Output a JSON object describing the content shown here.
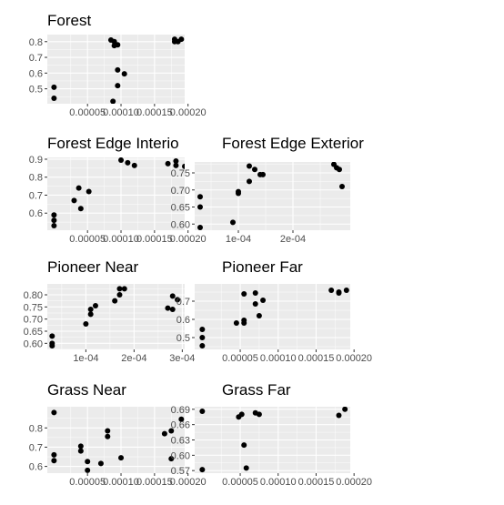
{
  "style": {
    "panel_bg": "#ebebeb",
    "grid_major": "#ffffff",
    "point_color": "#000000",
    "tick_text": "#4d4d4d"
  },
  "chart_data": [
    {
      "type": "scatter",
      "title": "Forest",
      "grid": true,
      "xlim": [
        -1e-05,
        0.000195
      ],
      "ylim": [
        0.405,
        0.845
      ],
      "x_ticks": [
        {
          "value": 5e-05,
          "label": "0.00005"
        },
        {
          "value": 0.0001,
          "label": "0.00010"
        },
        {
          "value": 0.00015,
          "label": "0.00015"
        },
        {
          "value": 0.0002,
          "label": "0.00020"
        }
      ],
      "y_ticks": [
        {
          "value": 0.5,
          "label": "0.5"
        },
        {
          "value": 0.6,
          "label": "0.6"
        },
        {
          "value": 0.7,
          "label": "0.7"
        },
        {
          "value": 0.8,
          "label": "0.8"
        }
      ],
      "points": [
        [
          0.0,
          0.51
        ],
        [
          0.0,
          0.44
        ],
        [
          8.5e-05,
          0.81
        ],
        [
          9e-05,
          0.8
        ],
        [
          9e-05,
          0.775
        ],
        [
          9.5e-05,
          0.78
        ],
        [
          9.5e-05,
          0.62
        ],
        [
          0.000105,
          0.595
        ],
        [
          9.5e-05,
          0.52
        ],
        [
          8.8e-05,
          0.42
        ],
        [
          0.00018,
          0.8
        ],
        [
          0.00018,
          0.815
        ],
        [
          0.000185,
          0.8
        ],
        [
          0.00019,
          0.815
        ]
      ]
    },
    {
      "type": "scatter",
      "title": "Forest Edge Interio",
      "grid": true,
      "xlim": [
        -1e-05,
        0.000195
      ],
      "ylim": [
        0.505,
        0.91
      ],
      "x_ticks": [
        {
          "value": 5e-05,
          "label": "0.00005"
        },
        {
          "value": 0.0001,
          "label": "0.00010"
        },
        {
          "value": 0.00015,
          "label": "0.00015"
        },
        {
          "value": 0.0002,
          "label": "0.00020"
        }
      ],
      "y_ticks": [
        {
          "value": 0.6,
          "label": "0.6"
        },
        {
          "value": 0.7,
          "label": "0.7"
        },
        {
          "value": 0.8,
          "label": "0.8"
        },
        {
          "value": 0.9,
          "label": "0.9"
        }
      ],
      "points": [
        [
          0.0,
          0.59
        ],
        [
          0.0,
          0.56
        ],
        [
          0.0,
          0.53
        ],
        [
          3e-05,
          0.67
        ],
        [
          4e-05,
          0.625
        ],
        [
          3.7e-05,
          0.74
        ],
        [
          5.2e-05,
          0.72
        ],
        [
          0.0001,
          0.895
        ],
        [
          0.00011,
          0.88
        ],
        [
          0.00012,
          0.865
        ],
        [
          0.00017,
          0.875
        ],
        [
          0.000182,
          0.89
        ],
        [
          0.000182,
          0.865
        ],
        [
          0.000195,
          0.86
        ]
      ]
    },
    {
      "type": "scatter",
      "title": "Forest Edge Exterior",
      "grid": true,
      "xlim": [
        2e-05,
        0.000305
      ],
      "ylim": [
        0.582,
        0.782
      ],
      "x_ticks": [
        {
          "value": 0.0001,
          "label": "1e-04"
        },
        {
          "value": 0.0002,
          "label": "2e-04"
        }
      ],
      "y_ticks": [
        {
          "value": 0.6,
          "label": "0.60"
        },
        {
          "value": 0.65,
          "label": "0.65"
        },
        {
          "value": 0.7,
          "label": "0.70"
        },
        {
          "value": 0.75,
          "label": "0.75"
        }
      ],
      "points": [
        [
          3e-05,
          0.68
        ],
        [
          3e-05,
          0.65
        ],
        [
          3e-05,
          0.59
        ],
        [
          9e-05,
          0.605
        ],
        [
          0.0001,
          0.69
        ],
        [
          0.0001,
          0.695
        ],
        [
          0.00012,
          0.77
        ],
        [
          0.00012,
          0.725
        ],
        [
          0.00013,
          0.76
        ],
        [
          0.00014,
          0.745
        ],
        [
          0.000145,
          0.745
        ],
        [
          0.000275,
          0.775
        ],
        [
          0.00028,
          0.765
        ],
        [
          0.000285,
          0.76
        ],
        [
          0.00029,
          0.71
        ]
      ]
    },
    {
      "type": "scatter",
      "title": "Pioneer Near",
      "grid": true,
      "xlim": [
        2e-05,
        0.000305
      ],
      "ylim": [
        0.575,
        0.845
      ],
      "x_ticks": [
        {
          "value": 0.0001,
          "label": "1e-04"
        },
        {
          "value": 0.0002,
          "label": "2e-04"
        },
        {
          "value": 0.0003,
          "label": "3e-04"
        }
      ],
      "y_ticks": [
        {
          "value": 0.6,
          "label": "0.60"
        },
        {
          "value": 0.65,
          "label": "0.65"
        },
        {
          "value": 0.7,
          "label": "0.70"
        },
        {
          "value": 0.75,
          "label": "0.75"
        },
        {
          "value": 0.8,
          "label": "0.80"
        }
      ],
      "points": [
        [
          3e-05,
          0.63
        ],
        [
          3e-05,
          0.6
        ],
        [
          3e-05,
          0.59
        ],
        [
          0.0001,
          0.68
        ],
        [
          0.00011,
          0.74
        ],
        [
          0.00011,
          0.72
        ],
        [
          0.00012,
          0.755
        ],
        [
          0.00016,
          0.775
        ],
        [
          0.00017,
          0.825
        ],
        [
          0.00017,
          0.8
        ],
        [
          0.00018,
          0.825
        ],
        [
          0.00027,
          0.745
        ],
        [
          0.00028,
          0.795
        ],
        [
          0.00028,
          0.74
        ],
        [
          0.00029,
          0.78
        ]
      ]
    },
    {
      "type": "scatter",
      "title": "Pioneer Far",
      "grid": true,
      "xlim": [
        -1e-05,
        0.000195
      ],
      "ylim": [
        0.435,
        0.795
      ],
      "x_ticks": [
        {
          "value": 5e-05,
          "label": "0.00005"
        },
        {
          "value": 0.0001,
          "label": "0.00010"
        },
        {
          "value": 0.00015,
          "label": "0.00015"
        },
        {
          "value": 0.0002,
          "label": "0.00020"
        }
      ],
      "y_ticks": [
        {
          "value": 0.5,
          "label": "0.5"
        },
        {
          "value": 0.6,
          "label": "0.6"
        },
        {
          "value": 0.7,
          "label": "0.7"
        }
      ],
      "points": [
        [
          0.0,
          0.545
        ],
        [
          0.0,
          0.5
        ],
        [
          0.0,
          0.455
        ],
        [
          4.5e-05,
          0.58
        ],
        [
          5.5e-05,
          0.74
        ],
        [
          5.5e-05,
          0.595
        ],
        [
          5.5e-05,
          0.58
        ],
        [
          7e-05,
          0.745
        ],
        [
          7e-05,
          0.685
        ],
        [
          7.5e-05,
          0.62
        ],
        [
          8e-05,
          0.705
        ],
        [
          0.00017,
          0.76
        ],
        [
          0.00018,
          0.745
        ],
        [
          0.00018,
          0.75
        ],
        [
          0.00019,
          0.76
        ]
      ]
    },
    {
      "type": "scatter",
      "title": "Grass Near",
      "grid": true,
      "xlim": [
        -1e-05,
        0.000195
      ],
      "ylim": [
        0.565,
        0.91
      ],
      "x_ticks": [
        {
          "value": 5e-05,
          "label": "0.00005"
        },
        {
          "value": 0.0001,
          "label": "0.00010"
        },
        {
          "value": 0.00015,
          "label": "0.00015"
        },
        {
          "value": 0.0002,
          "label": "0.00020"
        }
      ],
      "y_ticks": [
        {
          "value": 0.6,
          "label": "0.6"
        },
        {
          "value": 0.7,
          "label": "0.7"
        },
        {
          "value": 0.8,
          "label": "0.8"
        }
      ],
      "points": [
        [
          0.0,
          0.88
        ],
        [
          0.0,
          0.66
        ],
        [
          0.0,
          0.63
        ],
        [
          4e-05,
          0.705
        ],
        [
          4e-05,
          0.68
        ],
        [
          5e-05,
          0.58
        ],
        [
          5e-05,
          0.625
        ],
        [
          8e-05,
          0.785
        ],
        [
          8e-05,
          0.755
        ],
        [
          0.0001,
          0.645
        ],
        [
          7e-05,
          0.615
        ],
        [
          0.000165,
          0.77
        ],
        [
          0.000175,
          0.785
        ],
        [
          0.000175,
          0.64
        ],
        [
          0.00019,
          0.845
        ]
      ]
    },
    {
      "type": "scatter",
      "title": "Grass Far",
      "grid": true,
      "xlim": [
        -1e-05,
        0.000195
      ],
      "ylim": [
        0.565,
        0.695
      ],
      "x_ticks": [
        {
          "value": 5e-05,
          "label": "0.00005"
        },
        {
          "value": 0.0001,
          "label": "0.00010"
        },
        {
          "value": 0.00015,
          "label": "0.00015"
        },
        {
          "value": 0.0002,
          "label": "0.00020"
        }
      ],
      "y_ticks": [
        {
          "value": 0.57,
          "label": "0.57"
        },
        {
          "value": 0.6,
          "label": "0.60"
        },
        {
          "value": 0.63,
          "label": "0.63"
        },
        {
          "value": 0.66,
          "label": "0.66"
        },
        {
          "value": 0.69,
          "label": "0.69"
        }
      ],
      "points": [
        [
          0.0,
          0.686
        ],
        [
          0.0,
          0.572
        ],
        [
          4.8e-05,
          0.675
        ],
        [
          5.2e-05,
          0.68
        ],
        [
          5.5e-05,
          0.62
        ],
        [
          5.8e-05,
          0.575
        ],
        [
          7e-05,
          0.683
        ],
        [
          7.5e-05,
          0.68
        ],
        [
          0.00018,
          0.678
        ],
        [
          0.000188,
          0.69
        ]
      ]
    }
  ]
}
